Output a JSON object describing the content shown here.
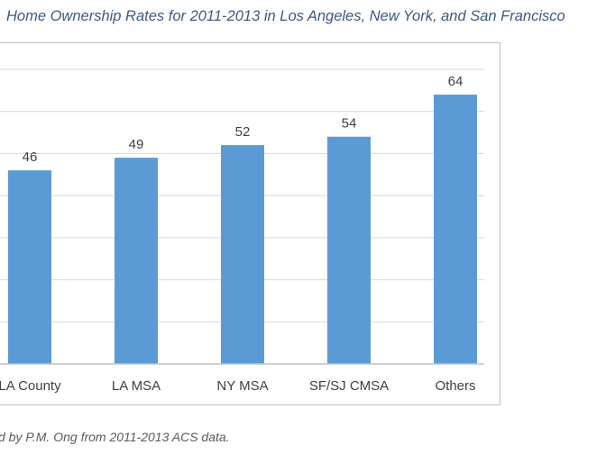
{
  "chart_data": {
    "type": "bar",
    "title": "Home Ownership Rates for 2011-2013 in Los Angeles, New York, and San Francisco",
    "categories": [
      "LA County",
      "LA MSA",
      "NY MSA",
      "SF/SJ CMSA",
      "Others"
    ],
    "values": [
      46,
      49,
      52,
      54,
      64
    ],
    "data_labels": [
      "46",
      "49",
      "52",
      "54",
      "64"
    ],
    "ylim": [
      0,
      70
    ],
    "grid": true,
    "bar_color": "#5b9bd5",
    "note": "d by P.M. Ong from 2011-2013 ACS data."
  }
}
